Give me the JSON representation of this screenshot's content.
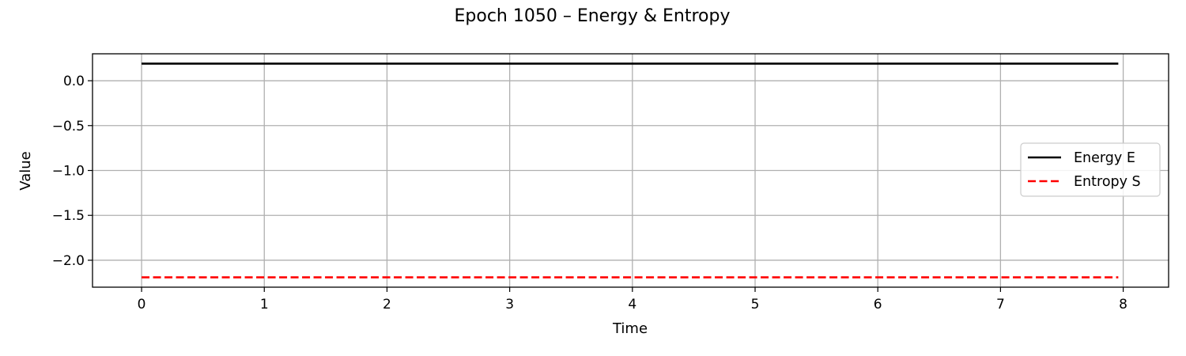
{
  "chart_data": {
    "type": "line",
    "title": "Epoch 1050 – Energy & Entropy",
    "xlabel": "Time",
    "ylabel": "Value",
    "xlim": [
      -0.4,
      8.37
    ],
    "ylim": [
      -2.3,
      0.3
    ],
    "xticks": [
      0,
      1,
      2,
      3,
      4,
      5,
      6,
      7,
      8
    ],
    "xtick_labels": [
      "0",
      "1",
      "2",
      "3",
      "4",
      "5",
      "6",
      "7",
      "8"
    ],
    "yticks": [
      0.0,
      -0.5,
      -1.0,
      -1.5,
      -2.0
    ],
    "ytick_labels": [
      "0.0",
      "−0.5",
      "−1.0",
      "−1.5",
      "−2.0"
    ],
    "grid": true,
    "legend_position": "center-right",
    "series": [
      {
        "name": "Energy E",
        "x": [
          0,
          7.96
        ],
        "y": [
          0.19,
          0.19
        ],
        "color": "#000000",
        "style": "solid"
      },
      {
        "name": "Entropy S",
        "x": [
          0,
          7.96
        ],
        "y": [
          -2.19,
          -2.19
        ],
        "color": "#ff0000",
        "style": "dashed"
      }
    ]
  }
}
